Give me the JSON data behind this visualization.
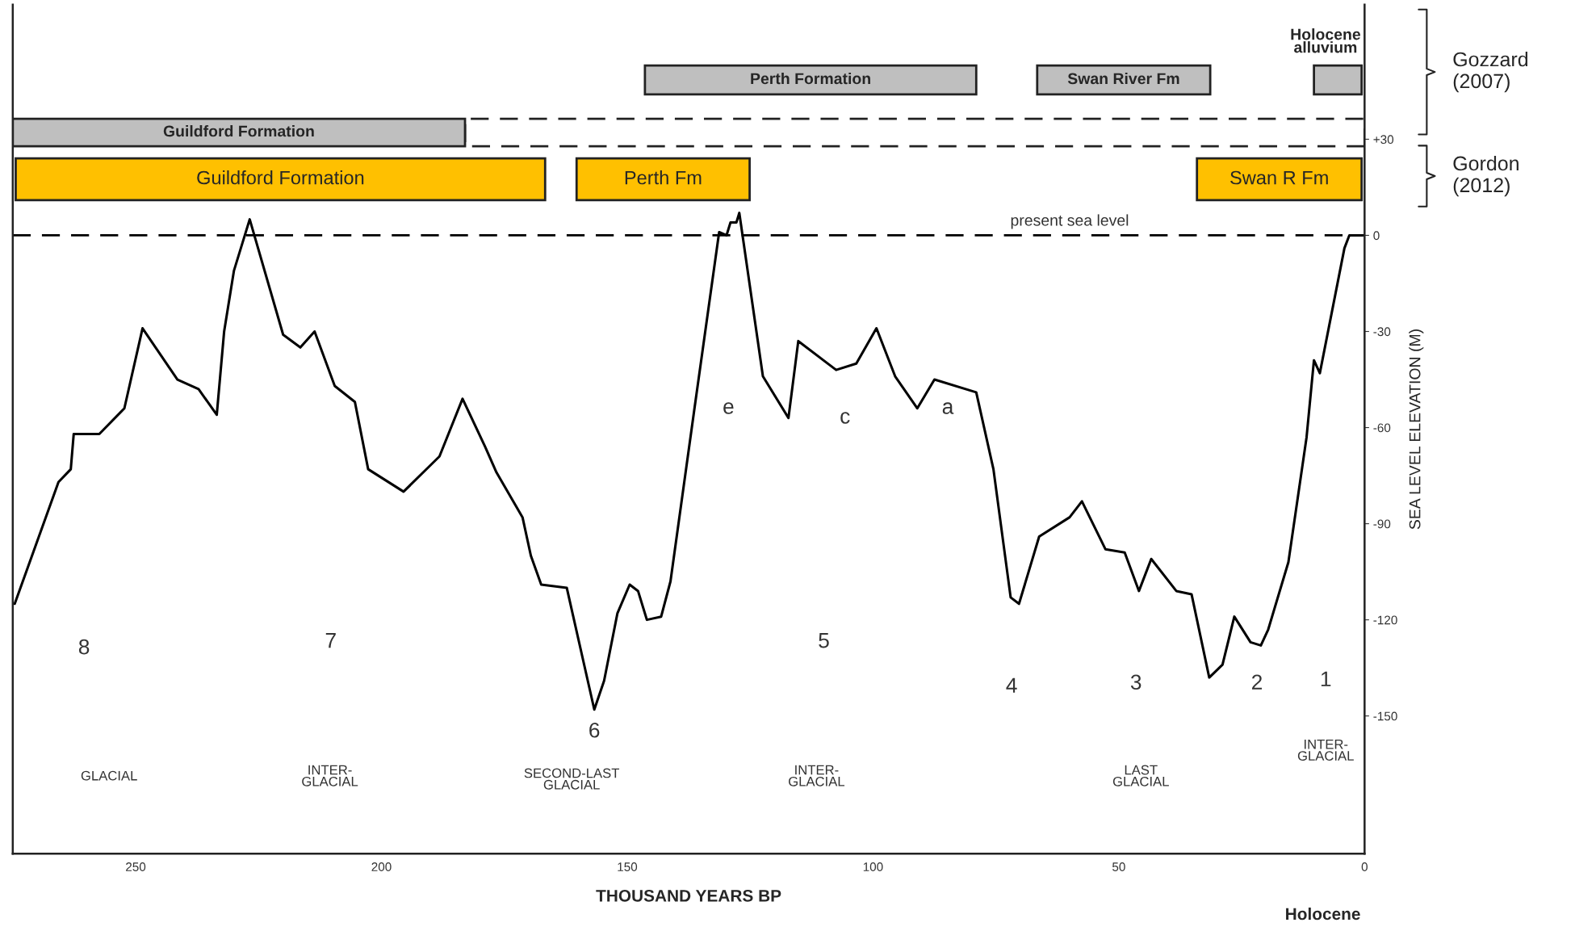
{
  "chart_data": {
    "type": "line",
    "xlabel": "THOUSAND YEARS BP",
    "ylabel": "SEA LEVEL ELEVATION (M)",
    "xlim": [
      275,
      0
    ],
    "xticks": [
      250,
      200,
      150,
      100,
      50,
      0
    ],
    "ylim": [
      -193,
      72
    ],
    "yticks": [
      {
        "value": 30,
        "label": "+30"
      },
      0,
      -30,
      -60,
      -90,
      -120,
      -150
    ],
    "marker": "none",
    "line_style": "solid",
    "series": [
      {
        "color": "#000000",
        "x": [
          274.6,
          265.7,
          263.2,
          262.6,
          257.4,
          252.3,
          248.6,
          241.5,
          237.2,
          233.5,
          232,
          230,
          226.8,
          220,
          216.5,
          213.6,
          209.5,
          205.4,
          202.7,
          195.5,
          188.2,
          183.5,
          178.9,
          176.6,
          171.3,
          169.6,
          167.5,
          162.3,
          156.7,
          154.7,
          152,
          149.5,
          147.8,
          146,
          143.1,
          141.2,
          136.5,
          131.3,
          129.8,
          129,
          127.8,
          127.2,
          122.4,
          117.2,
          115.2,
          107.5,
          103.4,
          99.3,
          95.5,
          91,
          87.5,
          79,
          75.5,
          72,
          70.3,
          66.2,
          60,
          57.5,
          52.7,
          48.8,
          45.9,
          43.4,
          38.3,
          35.2,
          31.6,
          28.9,
          26.5,
          23.2,
          21.1,
          19.6,
          15.5,
          11.8,
          10.3,
          9.1,
          4.1,
          3.1,
          0.4
        ],
        "values": [
          -115,
          -77,
          -73,
          -62,
          -62,
          -54,
          -29,
          -45,
          -48,
          -56,
          -30,
          -11,
          5,
          -31,
          -35,
          -30,
          -47,
          -52,
          -73,
          -80,
          -69,
          -51,
          -66,
          -74,
          -88,
          -100,
          -109,
          -110,
          -148,
          -139,
          -118,
          -109,
          -111,
          -120,
          -119,
          -108,
          -56,
          1,
          0,
          4,
          4,
          7,
          -44,
          -57,
          -33,
          -42,
          -40,
          -29,
          -44,
          -54,
          -45,
          -49,
          -73,
          -113,
          -115,
          -94,
          -88,
          -83,
          -98,
          -99,
          -111,
          -101,
          -111,
          -112,
          -138,
          -134,
          -119,
          -127,
          -128,
          -123,
          -102,
          -63,
          -39,
          -43,
          -4,
          0,
          0
        ]
      }
    ],
    "ref_lines": [
      {
        "axis": "y",
        "value": 0,
        "label": "present sea level",
        "color": "#000000",
        "line_style": "dashed"
      }
    ],
    "annotations": [
      "Holocene\nalluvium",
      "Perth Formation",
      "Swan River Fm",
      "Guildford Formation",
      "Guildford Formation",
      "Perth Fm",
      "Swan R Fm",
      "Gozzard\n(2007)",
      "Gordon\n(2012)",
      "8",
      "7",
      "6",
      "5",
      "4",
      "3",
      "2",
      "1",
      "e",
      "c",
      "a",
      "GLACIAL",
      "INTER-\nGLACIAL",
      "SECOND-LAST\nGLACIAL",
      "INTER-\nGLACIAL",
      "LAST\nGLACIAL",
      "INTER-\nGLACIAL",
      "Holocene"
    ]
  }
}
